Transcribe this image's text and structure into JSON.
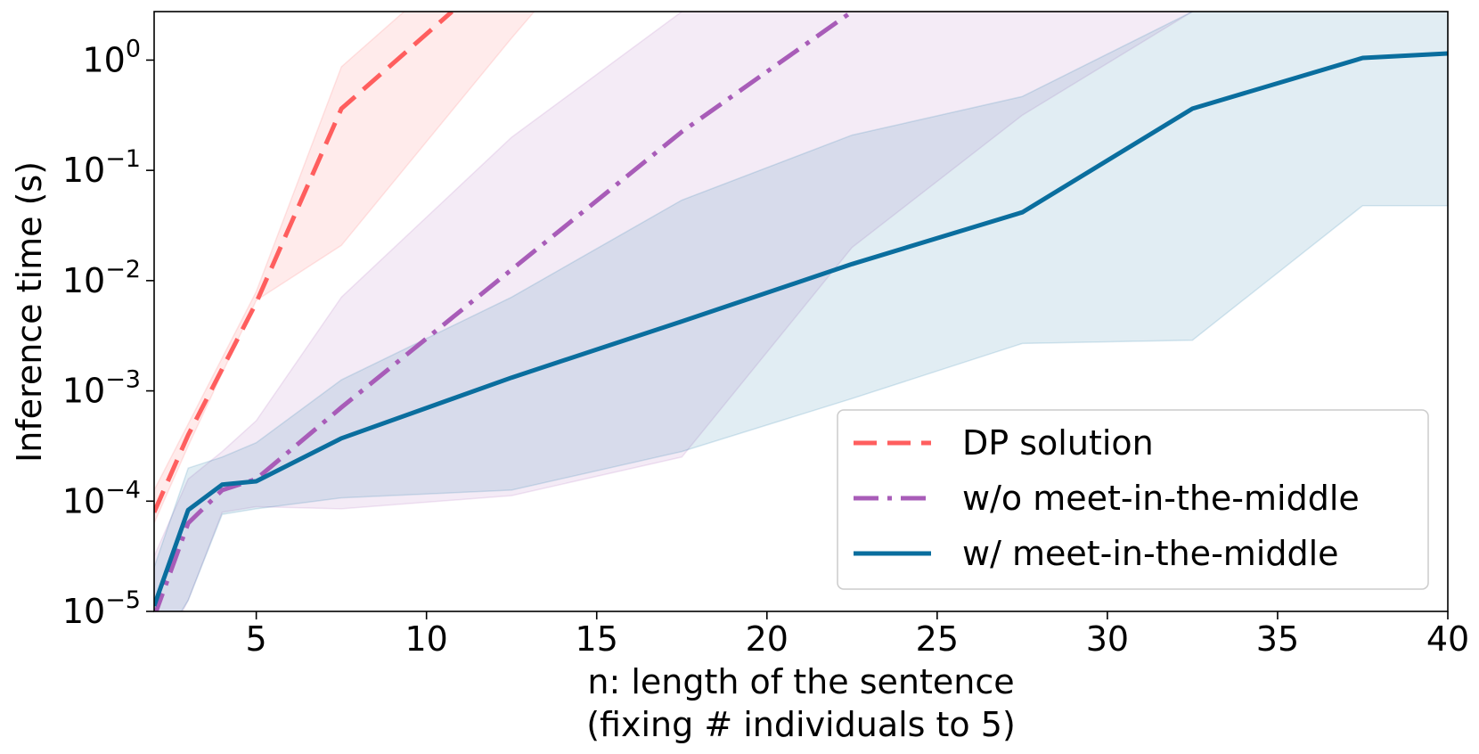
{
  "chart_data": {
    "type": "line",
    "title": "",
    "xlabel": "n: length of the sentence",
    "xlabel_line2": "(fixing # individuals to 5)",
    "ylabel": "Inference time (s)",
    "x_scale": "linear",
    "y_scale": "log",
    "xlim": [
      2,
      40
    ],
    "ylim_log10": [
      -5,
      0.44
    ],
    "x_ticks": [
      5,
      10,
      15,
      20,
      25,
      30,
      35,
      40
    ],
    "y_ticks": [
      {
        "exp": -5,
        "base": "10",
        "sup": "−5"
      },
      {
        "exp": -4,
        "base": "10",
        "sup": "−4"
      },
      {
        "exp": -3,
        "base": "10",
        "sup": "−3"
      },
      {
        "exp": -2,
        "base": "10",
        "sup": "−2"
      },
      {
        "exp": -1,
        "base": "10",
        "sup": "−1"
      },
      {
        "exp": 0,
        "base": "10",
        "sup": "0"
      }
    ],
    "grid": false,
    "legend_position": "lower-right",
    "series": [
      {
        "name": "DP solution",
        "color": "#ff5e5e",
        "dash": "dashed",
        "x": [
          2,
          3,
          5,
          7.5,
          10.75
        ],
        "y_log10": [
          -4.1,
          -3.4,
          -2.2,
          -0.44,
          0.44
        ],
        "band": {
          "x": [
            2,
            3,
            5,
            7.5,
            12.5,
            17.5
          ],
          "upper_log10": [
            -3.9,
            -3.3,
            -2.1,
            -0.06,
            1.3,
            2.5
          ],
          "lower_log10": [
            -4.2,
            -3.5,
            -2.18,
            -1.68,
            0.2,
            2.0
          ]
        }
      },
      {
        "name": "w/o meet-in-the-middle",
        "color": "#a85cb8",
        "dash": "dashdot",
        "x": [
          2,
          3,
          4,
          5,
          7.5,
          12.5,
          17.5,
          22.5
        ],
        "y_log10": [
          -5.05,
          -4.2,
          -3.9,
          -3.8,
          -3.15,
          -1.9,
          -0.65,
          0.44
        ],
        "band": {
          "x": [
            2,
            3,
            4,
            5,
            7.5,
            12.5,
            17.5,
            22.5,
            27.5,
            32.5
          ],
          "upper_log10": [
            -4.5,
            -3.8,
            -3.55,
            -3.27,
            -2.15,
            -0.7,
            0.44,
            1.5,
            2.5,
            3.5
          ],
          "lower_log10": [
            -5.5,
            -4.9,
            -4.1,
            -4.05,
            -4.07,
            -3.95,
            -3.6,
            -1.7,
            -0.5,
            0.44
          ]
        }
      },
      {
        "name": "w/ meet-in-the-middle",
        "color": "#0a6e9e",
        "dash": "solid",
        "x": [
          2,
          3,
          4,
          5,
          7.5,
          12.5,
          17.5,
          22.5,
          27.5,
          32.5,
          37.5,
          40
        ],
        "y_log10": [
          -4.95,
          -4.08,
          -3.85,
          -3.82,
          -3.43,
          -2.88,
          -2.37,
          -1.85,
          -1.38,
          -0.44,
          0.02,
          0.06
        ],
        "band": {
          "x": [
            2,
            3,
            4,
            5,
            7.5,
            12.5,
            17.5,
            22.5,
            27.5,
            32.5,
            37.5,
            40
          ],
          "upper_log10": [
            -4.6,
            -3.7,
            -3.6,
            -3.47,
            -2.9,
            -2.15,
            -1.27,
            -0.68,
            -0.33,
            0.44,
            0.9,
            1.0
          ],
          "lower_log10": [
            -5.4,
            -4.9,
            -4.12,
            -4.07,
            -3.97,
            -3.9,
            -3.55,
            -3.07,
            -2.57,
            -2.54,
            -1.32,
            -1.32
          ]
        }
      }
    ]
  }
}
